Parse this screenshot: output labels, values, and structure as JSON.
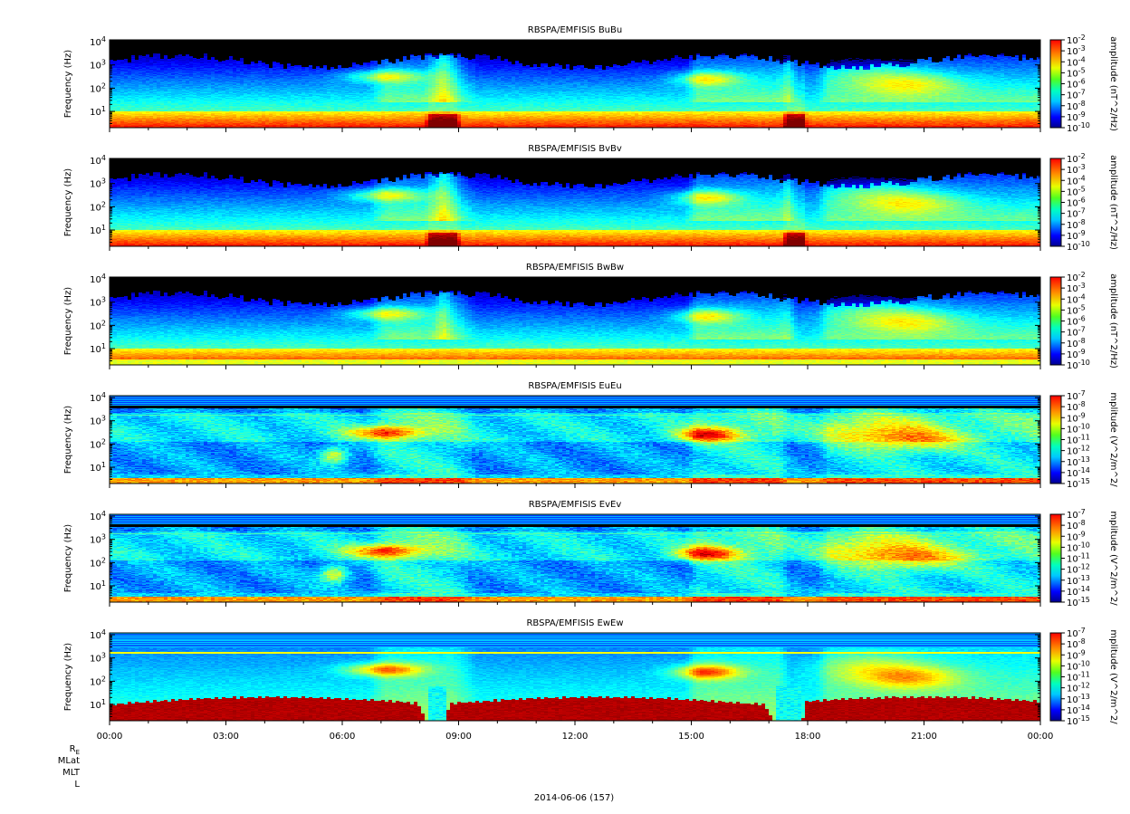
{
  "figure": {
    "date_label": "2014-06-06 (157)",
    "ephemeris_labels": [
      "R_E",
      "MLat",
      "MLT",
      "L"
    ]
  },
  "chart_data": [
    {
      "type": "heatmap",
      "title": "RBSPA/EMFISIS  BuBu",
      "ylabel": "Frequency (Hz)",
      "yscale": "log",
      "ylim": [
        2,
        12000
      ],
      "yticks": [
        "10^1",
        "10^2",
        "10^3",
        "10^4"
      ],
      "xticks": [
        "00:00",
        "03:00",
        "06:00",
        "09:00",
        "12:00",
        "15:00",
        "18:00",
        "21:00",
        "00:00"
      ],
      "colorbar_label": "amplitude (nT^2/Hz)",
      "colorbar_ticks": [
        "10^-2",
        "10^-3",
        "10^-4",
        "10^-5",
        "10^-6",
        "10^-7",
        "10^-8",
        "10^-9",
        "10^-10"
      ],
      "colorscale": "jet",
      "variant": "B"
    },
    {
      "type": "heatmap",
      "title": "RBSPA/EMFISIS  BvBv",
      "ylabel": "Frequency (Hz)",
      "yscale": "log",
      "ylim": [
        2,
        12000
      ],
      "yticks": [
        "10^1",
        "10^2",
        "10^3",
        "10^4"
      ],
      "xticks": [
        "00:00",
        "03:00",
        "06:00",
        "09:00",
        "12:00",
        "15:00",
        "18:00",
        "21:00",
        "00:00"
      ],
      "colorbar_label": "amplitude (nT^2/Hz)",
      "colorbar_ticks": [
        "10^-2",
        "10^-3",
        "10^-4",
        "10^-5",
        "10^-6",
        "10^-7",
        "10^-8",
        "10^-9",
        "10^-10"
      ],
      "colorscale": "jet",
      "variant": "B"
    },
    {
      "type": "heatmap",
      "title": "RBSPA/EMFISIS  BwBw",
      "ylabel": "Frequency (Hz)",
      "yscale": "log",
      "ylim": [
        2,
        12000
      ],
      "yticks": [
        "10^1",
        "10^2",
        "10^3",
        "10^4"
      ],
      "xticks": [
        "00:00",
        "03:00",
        "06:00",
        "09:00",
        "12:00",
        "15:00",
        "18:00",
        "21:00",
        "00:00"
      ],
      "colorbar_label": "amplitude (nT^2/Hz)",
      "colorbar_ticks": [
        "10^-2",
        "10^-3",
        "10^-4",
        "10^-5",
        "10^-6",
        "10^-7",
        "10^-8",
        "10^-9",
        "10^-10"
      ],
      "colorscale": "jet",
      "variant": "Bw"
    },
    {
      "type": "heatmap",
      "title": "RBSPA/EMFISIS  EuEu",
      "ylabel": "Frequency (Hz)",
      "yscale": "log",
      "ylim": [
        2,
        12000
      ],
      "yticks": [
        "10^1",
        "10^2",
        "10^3",
        "10^4"
      ],
      "xticks": [
        "00:00",
        "03:00",
        "06:00",
        "09:00",
        "12:00",
        "15:00",
        "18:00",
        "21:00",
        "00:00"
      ],
      "colorbar_label": "mplitude (V^2/m^2/",
      "colorbar_ticks": [
        "10^-7",
        "10^-8",
        "10^-9",
        "10^-10",
        "10^-11",
        "10^-12",
        "10^-13",
        "10^-14",
        "10^-15"
      ],
      "colorscale": "jet",
      "variant": "E"
    },
    {
      "type": "heatmap",
      "title": "RBSPA/EMFISIS  EvEv",
      "ylabel": "Frequency (Hz)",
      "yscale": "log",
      "ylim": [
        2,
        12000
      ],
      "yticks": [
        "10^1",
        "10^2",
        "10^3",
        "10^4"
      ],
      "xticks": [
        "00:00",
        "03:00",
        "06:00",
        "09:00",
        "12:00",
        "15:00",
        "18:00",
        "21:00",
        "00:00"
      ],
      "colorbar_label": "mplitude (V^2/m^2/",
      "colorbar_ticks": [
        "10^-7",
        "10^-8",
        "10^-9",
        "10^-10",
        "10^-11",
        "10^-12",
        "10^-13",
        "10^-14",
        "10^-15"
      ],
      "colorscale": "jet",
      "variant": "E"
    },
    {
      "type": "heatmap",
      "title": "RBSPA/EMFISIS  EwEw",
      "ylabel": "Frequency (Hz)",
      "yscale": "log",
      "ylim": [
        2,
        12000
      ],
      "yticks": [
        "10^1",
        "10^2",
        "10^3",
        "10^4"
      ],
      "xticks": [
        "00:00",
        "03:00",
        "06:00",
        "09:00",
        "12:00",
        "15:00",
        "18:00",
        "21:00",
        "00:00"
      ],
      "colorbar_label": "mplitude (V^2/m^2/",
      "colorbar_ticks": [
        "10^-7",
        "10^-8",
        "10^-9",
        "10^-10",
        "10^-11",
        "10^-12",
        "10^-13",
        "10^-14",
        "10^-15"
      ],
      "colorscale": "jet",
      "variant": "Ew"
    }
  ]
}
